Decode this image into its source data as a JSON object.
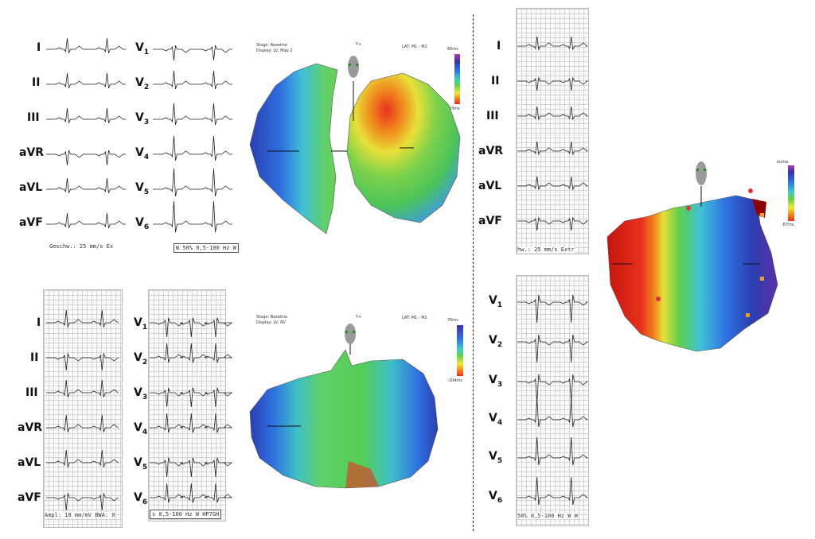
{
  "panel_a": {
    "limb_leads": [
      "I",
      "II",
      "III",
      "aVR",
      "aVL",
      "aVF"
    ],
    "chest_leads": [
      "V",
      "V",
      "V",
      "V",
      "V",
      "V"
    ],
    "chest_subs": [
      "1",
      "2",
      "3",
      "4",
      "5",
      "6"
    ],
    "footer_left": "Geschw.: 25 mm/s   Ex",
    "footer_right": "W 50% 0,5-100 Hz W"
  },
  "panel_b": {
    "limb_leads": [
      "I",
      "II",
      "III",
      "aVR",
      "aVL",
      "aVF"
    ],
    "chest_leads": [
      "V",
      "V",
      "V",
      "V",
      "V",
      "V"
    ],
    "chest_subs": [
      "1",
      "2",
      "3",
      "4",
      "5",
      "6"
    ],
    "footer_left": "Ampl: 10 mm/mV  BWA: 0",
    "footer_right": "s 0,5-100 Hz W  HP7GH"
  },
  "panel_c": {
    "limb_leads": [
      "I",
      "II",
      "III",
      "aVR",
      "aVL",
      "aVF"
    ],
    "chest_leads": [
      "V",
      "V",
      "V",
      "V",
      "V",
      "V"
    ],
    "chest_subs": [
      "1",
      "2",
      "3",
      "4",
      "5",
      "6"
    ],
    "footer_top": "hw.: 25 mm/s   Extr",
    "footer_bottom": "50% 0,5-100 Hz W  H"
  },
  "map_top": {
    "stage": "Stage: Baseline",
    "display": "Display: LV, Map 2",
    "lat": "LAT: M1 - M2",
    "scale_max": "66ms",
    "scale_min": "-93ms",
    "axis_label": "Y+"
  },
  "map_bottom": {
    "stage": "Stage: Baseline",
    "display": "Display: LV, RV",
    "lat": "LAT: M1 - M2",
    "scale_max": "76ms",
    "scale_min": "-104ms",
    "axis_label": "Y+"
  },
  "map_right": {
    "scale_max": "euma",
    "scale_min": "-87ms"
  },
  "colors": {
    "early": "#e8321e",
    "late": "#3a2fa8",
    "mid": "#5fd14a"
  }
}
